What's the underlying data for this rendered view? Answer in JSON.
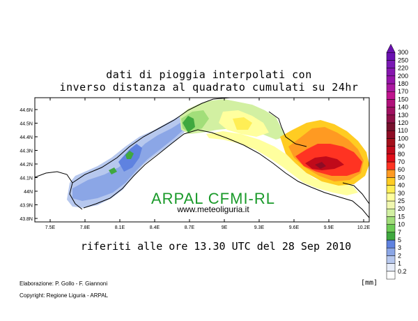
{
  "title_line1": "dati di pioggia interpolati con",
  "title_line2": "inverso distanza al quadrato cumulati su 24hr",
  "subtitle": "riferiti alle ore 13.30 UTC del 28 Sep 2010",
  "watermark": "ARPAL CFMI-RL",
  "website": "www.meteoliguria.it",
  "credit_line1": "Elaborazione: P. Gollo - F. Giannoni",
  "credit_line2": "Copyright: Regione Liguria - ARPAL",
  "unit_label": "[mm]",
  "lat_ticks": [
    "44.6N",
    "44.5N",
    "44.4N",
    "44.3N",
    "44.2N",
    "44.1N",
    "44N",
    "43.9N",
    "43.8N"
  ],
  "lon_ticks": [
    "7.5E",
    "7.8E",
    "8.1E",
    "8.4E",
    "8.7E",
    "9E",
    "9.3E",
    "9.6E",
    "9.9E",
    "10.2E"
  ],
  "legend": [
    {
      "label": "0.2",
      "color": "#ffffff"
    },
    {
      "label": "1",
      "color": "#e6ecf8"
    },
    {
      "label": "2",
      "color": "#b7c8ee"
    },
    {
      "label": "3",
      "color": "#8ba6e6"
    },
    {
      "label": "5",
      "color": "#5f82e0"
    },
    {
      "label": "7",
      "color": "#3fa83f"
    },
    {
      "label": "10",
      "color": "#6ccb55"
    },
    {
      "label": "15",
      "color": "#a2de7a"
    },
    {
      "label": "20",
      "color": "#d2f0a2"
    },
    {
      "label": "25",
      "color": "#f0f7b0"
    },
    {
      "label": "30",
      "color": "#ffff9e"
    },
    {
      "label": "40",
      "color": "#ffee55"
    },
    {
      "label": "50",
      "color": "#ffcc22"
    },
    {
      "label": "60",
      "color": "#ff9a22"
    },
    {
      "label": "70",
      "color": "#ff3322"
    },
    {
      "label": "80",
      "color": "#e00d18"
    },
    {
      "label": "90",
      "color": "#c00a1a"
    },
    {
      "label": "100",
      "color": "#a40f1a"
    },
    {
      "label": "110",
      "color": "#8e0c24"
    },
    {
      "label": "120",
      "color": "#76102c"
    },
    {
      "label": "130",
      "color": "#8e1046"
    },
    {
      "label": "140",
      "color": "#a01060"
    },
    {
      "label": "150",
      "color": "#b0107a"
    },
    {
      "label": "170",
      "color": "#c0148e"
    },
    {
      "label": "180",
      "color": "#aa18a0"
    },
    {
      "label": "200",
      "color": "#9614a8"
    },
    {
      "label": "220",
      "color": "#8616ae"
    },
    {
      "label": "250",
      "color": "#7a18b4"
    },
    {
      "label": "300",
      "color": "#6a10b0"
    }
  ]
}
